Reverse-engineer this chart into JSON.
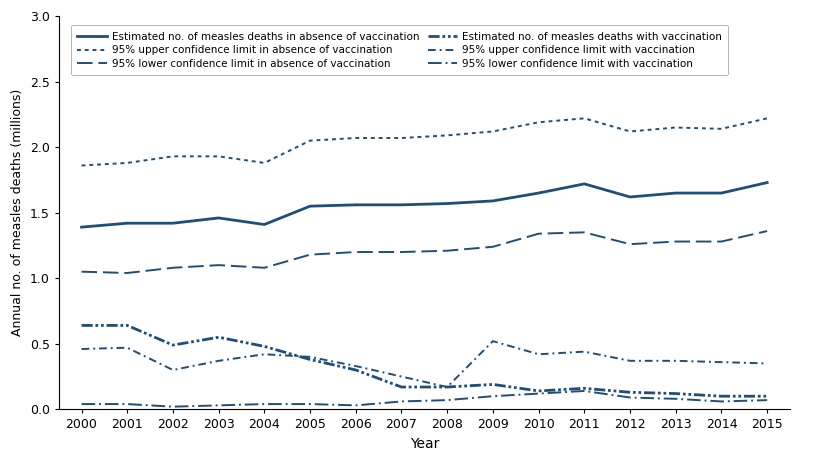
{
  "years": [
    2000,
    2001,
    2002,
    2003,
    2004,
    2005,
    2006,
    2007,
    2008,
    2009,
    2010,
    2011,
    2012,
    2013,
    2014,
    2015
  ],
  "no_vacc_estimate": [
    1.39,
    1.42,
    1.42,
    1.46,
    1.41,
    1.55,
    1.56,
    1.56,
    1.57,
    1.59,
    1.65,
    1.72,
    1.62,
    1.65,
    1.65,
    1.73
  ],
  "no_vacc_upper": [
    1.86,
    1.88,
    1.93,
    1.93,
    1.88,
    2.05,
    2.07,
    2.07,
    2.09,
    2.12,
    2.19,
    2.22,
    2.12,
    2.15,
    2.14,
    2.22
  ],
  "no_vacc_lower": [
    1.05,
    1.04,
    1.08,
    1.1,
    1.08,
    1.18,
    1.2,
    1.2,
    1.21,
    1.24,
    1.34,
    1.35,
    1.26,
    1.28,
    1.28,
    1.36
  ],
  "vacc_estimate": [
    0.64,
    0.64,
    0.49,
    0.55,
    0.48,
    0.38,
    0.3,
    0.17,
    0.17,
    0.19,
    0.14,
    0.16,
    0.13,
    0.12,
    0.1,
    0.1
  ],
  "vacc_upper": [
    0.46,
    0.47,
    0.3,
    0.37,
    0.42,
    0.4,
    0.33,
    0.25,
    0.17,
    0.52,
    0.42,
    0.44,
    0.37,
    0.37,
    0.36,
    0.35
  ],
  "vacc_lower": [
    0.04,
    0.04,
    0.02,
    0.03,
    0.04,
    0.04,
    0.03,
    0.06,
    0.07,
    0.1,
    0.12,
    0.14,
    0.09,
    0.08,
    0.06,
    0.07
  ],
  "color": "#1f4e79",
  "ylim": [
    0.0,
    3.0
  ],
  "yticks": [
    0.0,
    0.5,
    1.0,
    1.5,
    2.0,
    2.5,
    3.0
  ],
  "xlabel": "Year",
  "ylabel": "Annual no. of measles deaths (millions)",
  "legend_labels": [
    "Estimated no. of measles deaths in absence of vaccination",
    "95% upper confidence limit in absence of vaccination",
    "95% lower confidence limit in absence of vaccination",
    "Estimated no. of measles deaths with vaccination",
    "95% upper confidence limit with vaccination",
    "95% lower confidence limit with vaccination"
  ]
}
